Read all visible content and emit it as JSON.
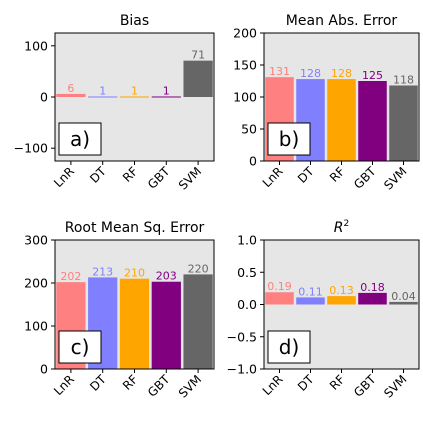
{
  "colors": {
    "panel_bg": "#e6e6e6",
    "LnR": "#ff8080",
    "DT": "#8080ff",
    "RF": "#ffa500",
    "GBT": "#800080",
    "SVM": "#666666",
    "axis": "#000000"
  },
  "chart_data": [
    {
      "type": "bar",
      "title": "Bias",
      "panel_label": "a)",
      "categories": [
        "LnR",
        "DT",
        "RF",
        "GBT",
        "SVM"
      ],
      "values": [
        6,
        1,
        1,
        1,
        71
      ],
      "value_labels": [
        "6",
        "1",
        "1",
        "1",
        "71"
      ],
      "ylim": [
        -125,
        125
      ],
      "yticks": [
        -100,
        0,
        100
      ],
      "ytick_labels": [
        "−100",
        "0",
        "100"
      ],
      "grid": false
    },
    {
      "type": "bar",
      "title": "Mean Abs. Error",
      "panel_label": "b)",
      "categories": [
        "LnR",
        "DT",
        "RF",
        "GBT",
        "SVM"
      ],
      "values": [
        131,
        128,
        128,
        125,
        118
      ],
      "value_labels": [
        "131",
        "128",
        "128",
        "125",
        "118"
      ],
      "ylim": [
        0,
        200
      ],
      "yticks": [
        0,
        50,
        100,
        150,
        200
      ],
      "ytick_labels": [
        "0",
        "50",
        "100",
        "150",
        "200"
      ],
      "grid": false
    },
    {
      "type": "bar",
      "title": "Root Mean Sq. Error",
      "panel_label": "c)",
      "categories": [
        "LnR",
        "DT",
        "RF",
        "GBT",
        "SVM"
      ],
      "values": [
        202,
        213,
        210,
        203,
        220
      ],
      "value_labels": [
        "202",
        "213",
        "210",
        "203",
        "220"
      ],
      "ylim": [
        0,
        300
      ],
      "yticks": [
        0,
        100,
        200,
        300
      ],
      "ytick_labels": [
        "0",
        "100",
        "200",
        "300"
      ],
      "grid": false
    },
    {
      "type": "bar",
      "title": "R²",
      "panel_label": "d)",
      "categories": [
        "LnR",
        "DT",
        "RF",
        "GBT",
        "SVM"
      ],
      "values": [
        0.19,
        0.11,
        0.13,
        0.18,
        0.04
      ],
      "value_labels": [
        "0.19",
        "0.11",
        "0.13",
        "0.18",
        "0.04"
      ],
      "ylim": [
        -1.0,
        1.0
      ],
      "yticks": [
        -1.0,
        -0.5,
        0.0,
        0.5,
        1.0
      ],
      "ytick_labels": [
        "−1.0",
        "−0.5",
        "0.0",
        "0.5",
        "1.0"
      ],
      "grid": false
    }
  ]
}
